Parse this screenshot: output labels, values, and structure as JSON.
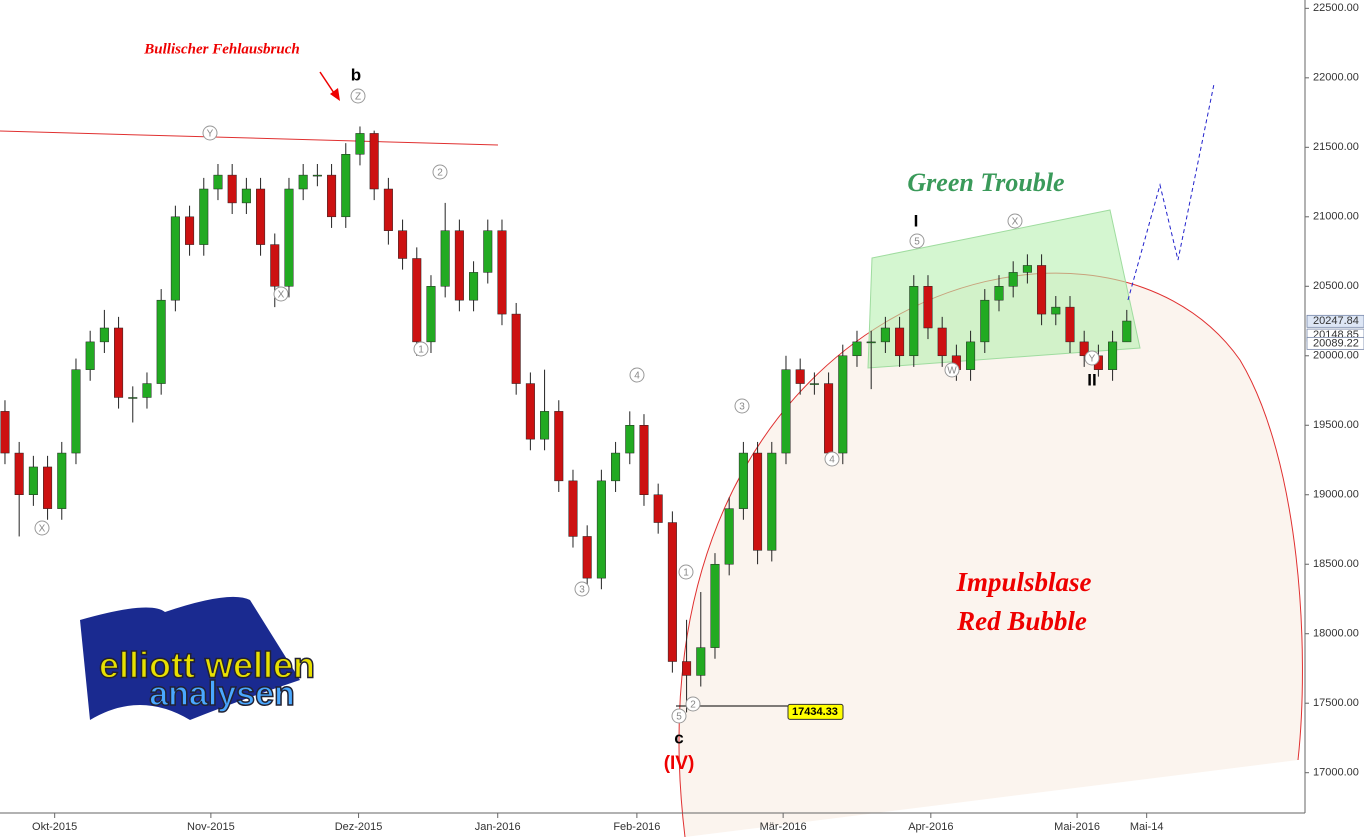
{
  "chart_data": {
    "type": "candlestick",
    "categories": [
      null,
      null,
      null,
      null,
      null,
      null,
      null,
      null,
      null,
      null,
      null,
      null,
      null,
      null,
      null,
      null,
      null,
      null,
      null,
      null,
      null,
      null,
      null,
      null,
      null,
      null,
      null,
      null,
      null,
      null,
      null,
      null,
      null,
      null,
      null,
      null,
      null,
      null,
      null,
      null,
      null,
      null,
      null,
      null,
      null,
      null,
      null,
      null,
      null,
      null,
      null,
      null,
      null,
      null,
      null,
      null,
      null,
      null,
      null,
      null,
      null,
      null,
      null,
      null,
      null,
      null,
      null,
      null,
      null,
      null,
      null,
      null,
      null,
      null,
      null,
      null,
      null,
      null,
      null,
      null
    ],
    "open": [
      19600,
      19300,
      19000,
      19200,
      18900,
      19300,
      19900,
      20100,
      20200,
      19700,
      19700,
      19800,
      20400,
      21000,
      20800,
      21200,
      21300,
      21100,
      21200,
      20800,
      20500,
      21200,
      21300,
      21300,
      21000,
      21450,
      21600,
      21200,
      20900,
      20700,
      20100,
      20500,
      20900,
      20400,
      20600,
      20900,
      20300,
      19800,
      19400,
      19600,
      19100,
      18700,
      18400,
      19100,
      19300,
      19500,
      19000,
      18800,
      17800,
      17700,
      17900,
      18500,
      18900,
      19300,
      18600,
      19300,
      19900,
      19800,
      19800,
      19300,
      20000,
      20100,
      20100,
      20200,
      20000,
      20500,
      20200,
      20000,
      19900,
      20100,
      20400,
      20500,
      20600,
      20650,
      20300,
      20350,
      20100,
      20000,
      19900,
      20100
    ],
    "high": [
      19680,
      19380,
      19280,
      19280,
      19380,
      19980,
      20180,
      20330,
      20280,
      19780,
      19880,
      20480,
      21080,
      21080,
      21280,
      21380,
      21380,
      21280,
      21280,
      20880,
      21280,
      21380,
      21380,
      21380,
      21530,
      21650,
      21620,
      21280,
      20980,
      20780,
      20580,
      21100,
      20980,
      20680,
      20980,
      20980,
      20380,
      19880,
      19900,
      19680,
      19180,
      18780,
      19180,
      19380,
      19600,
      19580,
      19080,
      18880,
      18100,
      18300,
      18580,
      18980,
      19380,
      19380,
      19380,
      20000,
      19980,
      19880,
      19880,
      20080,
      20180,
      20180,
      20280,
      20280,
      20580,
      20580,
      20280,
      20080,
      20180,
      20480,
      20580,
      20680,
      20730,
      20730,
      20430,
      20430,
      20180,
      20080,
      20180,
      20330
    ],
    "low": [
      19220,
      18700,
      18920,
      18820,
      18820,
      19220,
      19820,
      20020,
      19620,
      19520,
      19620,
      19720,
      20320,
      20720,
      20720,
      21120,
      21020,
      21020,
      20720,
      20350,
      20420,
      21120,
      21220,
      20920,
      20920,
      21370,
      21120,
      20800,
      20620,
      20000,
      20020,
      20420,
      20320,
      20320,
      20520,
      20220,
      19720,
      19320,
      19320,
      19020,
      18620,
      18320,
      18320,
      19020,
      19220,
      18920,
      18720,
      17720,
      17434,
      17620,
      17820,
      18420,
      18820,
      18500,
      18520,
      19220,
      19720,
      19720,
      19220,
      19220,
      19920,
      19760,
      20020,
      19920,
      19920,
      20120,
      19920,
      19820,
      19820,
      20020,
      20320,
      20420,
      20520,
      20220,
      20220,
      20020,
      19920,
      19850,
      19820,
      20100
    ],
    "close": [
      19300,
      19000,
      19200,
      18900,
      19300,
      19900,
      20100,
      20200,
      19700,
      19700,
      19800,
      20400,
      21000,
      20800,
      21200,
      21300,
      21100,
      21200,
      20800,
      20500,
      21200,
      21300,
      21300,
      21000,
      21450,
      21600,
      21200,
      20900,
      20700,
      20100,
      20500,
      20900,
      20400,
      20600,
      20900,
      20300,
      19800,
      19400,
      19600,
      19100,
      18700,
      18400,
      19100,
      19300,
      19500,
      19000,
      18800,
      17800,
      17700,
      17900,
      18500,
      18900,
      19300,
      18600,
      19300,
      19900,
      19800,
      19800,
      19300,
      20000,
      20100,
      20100,
      20200,
      20000,
      20500,
      20200,
      20000,
      19900,
      20100,
      20400,
      20500,
      20600,
      20650,
      20300,
      20350,
      20100,
      20000,
      19900,
      20100,
      20250
    ],
    "up_color": "#22aa22",
    "down_color": "#cc1111",
    "ylim": [
      16710,
      22560
    ],
    "yticks": [
      {
        "value": 17000,
        "label": "17000.00"
      },
      {
        "value": 17500,
        "label": "17500.00"
      },
      {
        "value": 18000,
        "label": "18000.00"
      },
      {
        "value": 18500,
        "label": "18500.00"
      },
      {
        "value": 19000,
        "label": "19000.00"
      },
      {
        "value": 19500,
        "label": "19500.00"
      },
      {
        "value": 20000,
        "label": "20000.00"
      },
      {
        "value": 20500,
        "label": "20500.00"
      },
      {
        "value": 21000,
        "label": "21000.00"
      },
      {
        "value": 21500,
        "label": "21500.00"
      },
      {
        "value": 22000,
        "label": "22000.00"
      },
      {
        "value": 22500,
        "label": "22500.00"
      }
    ],
    "xlim": [
      -0.35,
      91.55
    ],
    "xticks": [
      {
        "value": 3.5,
        "label": "Okt-2015"
      },
      {
        "value": 14.5,
        "label": "Nov-2015"
      },
      {
        "value": 24.9,
        "label": "Dez-2015"
      },
      {
        "value": 34.7,
        "label": "Jan-2016"
      },
      {
        "value": 44.5,
        "label": "Feb-2016"
      },
      {
        "value": 54.8,
        "label": "Mär-2016"
      },
      {
        "value": 65.2,
        "label": "Apr-2016"
      },
      {
        "value": 75.5,
        "label": "Mai-2016"
      },
      {
        "value": 80.4,
        "label": "Mai-14"
      }
    ],
    "price_tags": [
      {
        "value": 20247.84,
        "color": "#dde6f5"
      },
      {
        "value": 20148.85,
        "color": "#ffffff"
      },
      {
        "value": 20089.22,
        "color": "#ffffff"
      }
    ],
    "low_tag": {
      "value": 17434.33,
      "color": "#ffff00"
    },
    "annotations": [
      "Bullischer Fehlausbruch",
      "b",
      "Green Trouble",
      "I",
      "II",
      "c",
      "(IV)",
      "Impulsblase",
      "Red Bubble"
    ],
    "wave_labels": [
      "X",
      "Y",
      "X",
      "Z",
      "2",
      "1",
      "3",
      "4",
      "5",
      "1",
      "2",
      "3",
      "4",
      "5",
      "W",
      "X",
      "Y"
    ],
    "logo": [
      "elliott",
      "wellen",
      "analysen"
    ]
  }
}
